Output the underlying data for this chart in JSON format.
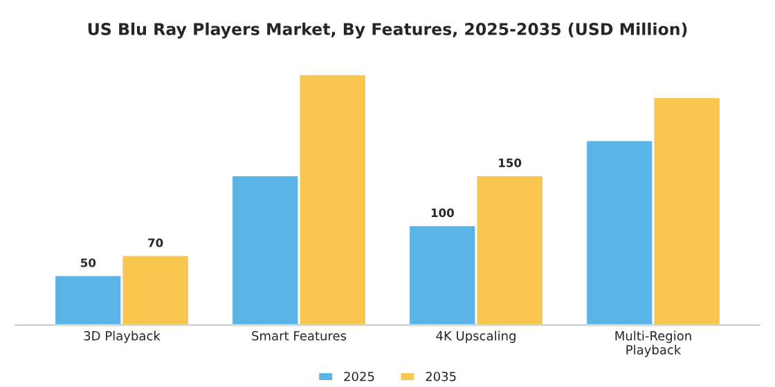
{
  "chart_data": {
    "type": "bar",
    "title": "US Blu Ray Players Market, By Features, 2025-2035 (USD Million)",
    "categories": [
      "3D Playback",
      "Smart Features",
      "4K Upscaling",
      "Multi-Region\nPlayback"
    ],
    "series": [
      {
        "name": "2025",
        "color": "#5ab4e5",
        "values": [
          50,
          150,
          100,
          185
        ],
        "value_labels": [
          "50",
          null,
          "100",
          null
        ]
      },
      {
        "name": "2035",
        "color": "#f9c74f",
        "values": [
          70,
          251,
          150,
          228
        ],
        "value_labels": [
          "70",
          null,
          "150",
          null
        ]
      }
    ],
    "legend": "bottom",
    "grid": false
  }
}
